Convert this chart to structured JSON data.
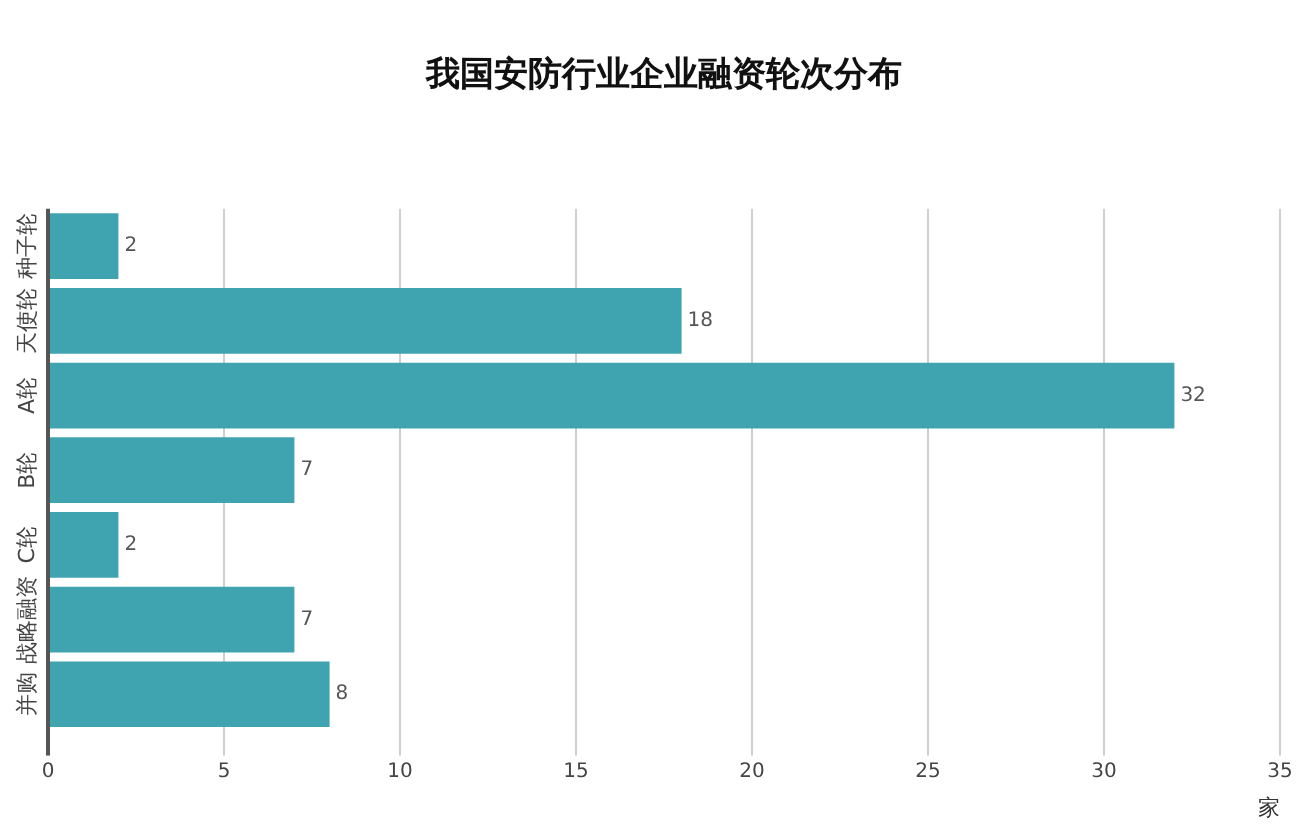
{
  "chart_data": {
    "type": "bar",
    "orientation": "horizontal",
    "title": "我国安防行业企业融资轮次分布",
    "xlabel": "家",
    "categories": [
      "种子轮",
      "天使轮",
      "A轮",
      "B轮",
      "C轮",
      "战略融资",
      "并购"
    ],
    "values": [
      2,
      18,
      32,
      7,
      2,
      7,
      8
    ],
    "color": "#40a3b0",
    "xlim": [
      0,
      35
    ],
    "xticks": [
      0,
      5,
      10,
      15,
      20,
      25,
      30,
      35
    ],
    "grid": "x",
    "data_labels": true
  }
}
